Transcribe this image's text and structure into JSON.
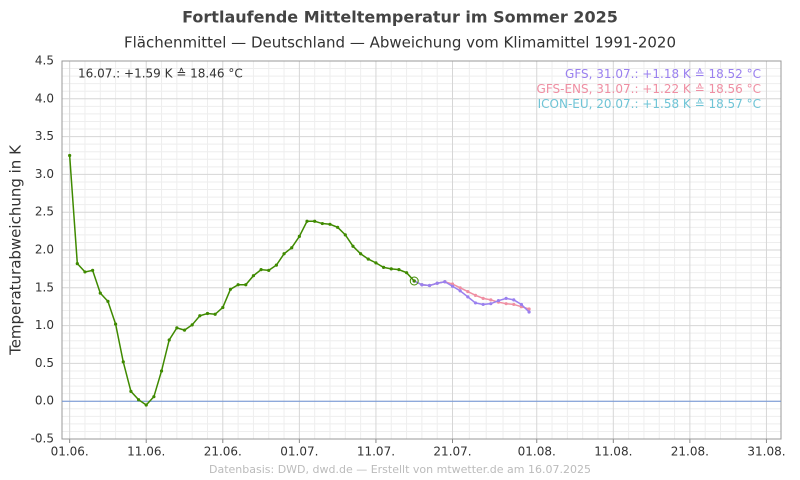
{
  "chart_data": {
    "type": "line",
    "title": "Fortlaufende Mitteltemperatur im Sommer 2025",
    "subtitle": "Flächenmittel — Deutschland — Abweichung vom Klimamittel 1991-2020",
    "y_label": "Temperaturabweichung in K",
    "footer": "Datenbasis: DWD, dwd.de — Erstellt von mtwetter.de am 16.07.2025",
    "annotation": "16.07.: +1.59 K ≙ 18.46 °C",
    "annotation_color": "#3f8a00",
    "xlim": [
      -1,
      92.9
    ],
    "ylim": [
      -0.5,
      4.5
    ],
    "xticks": [
      {
        "value": 0,
        "label": "01.06."
      },
      {
        "value": 10,
        "label": "11.06."
      },
      {
        "value": 20,
        "label": "21.06."
      },
      {
        "value": 30,
        "label": "01.07."
      },
      {
        "value": 40,
        "label": "11.07."
      },
      {
        "value": 50,
        "label": "21.07."
      },
      {
        "value": 61,
        "label": "01.08."
      },
      {
        "value": 71,
        "label": "11.08."
      },
      {
        "value": 81,
        "label": "21.08."
      },
      {
        "value": 91,
        "label": "31.08."
      }
    ],
    "yticks": [
      -0.5,
      {
        "value": 0,
        "label": "0.0"
      },
      0.5,
      {
        "value": 1,
        "label": "1.0"
      },
      1.5,
      {
        "value": 2,
        "label": "2.0"
      },
      2.5,
      {
        "value": 3,
        "label": "3.0"
      },
      3.5,
      {
        "value": 4,
        "label": "4.0"
      },
      4.5
    ],
    "grid": true,
    "zero_line_color": "#6f93d6",
    "series": [
      {
        "color": "#3f8a00",
        "x": [
          0,
          1,
          2,
          3,
          4,
          5,
          6,
          7,
          8,
          9,
          10,
          11,
          12,
          13,
          14,
          15,
          16,
          17,
          18,
          19,
          20,
          21,
          22,
          23,
          24,
          25,
          26,
          27,
          28,
          29,
          30,
          31,
          32,
          33,
          34,
          35,
          36,
          37,
          38,
          39,
          40,
          41,
          42,
          43,
          44,
          45
        ],
        "values": [
          3.25,
          1.82,
          1.71,
          1.73,
          1.43,
          1.32,
          1.02,
          0.52,
          0.13,
          0.02,
          -0.05,
          0.06,
          0.4,
          0.81,
          0.97,
          0.94,
          1.01,
          1.13,
          1.16,
          1.15,
          1.24,
          1.48,
          1.54,
          1.54,
          1.66,
          1.74,
          1.73,
          1.8,
          1.95,
          2.03,
          2.18,
          2.38,
          2.38,
          2.35,
          2.34,
          2.3,
          2.2,
          2.05,
          1.95,
          1.88,
          1.83,
          1.77,
          1.75,
          1.74,
          1.7,
          1.59
        ]
      },
      {
        "name": "GFS",
        "note": ", 31.07.: +1.18 K ≙ 18.52 °C",
        "color": "#9a80ef",
        "x": [
          45,
          46,
          47,
          48,
          49,
          50,
          51,
          52,
          53,
          54,
          55,
          56,
          57,
          58,
          59,
          60
        ],
        "values": [
          1.59,
          1.54,
          1.53,
          1.56,
          1.58,
          1.52,
          1.46,
          1.38,
          1.3,
          1.28,
          1.29,
          1.33,
          1.36,
          1.34,
          1.28,
          1.18
        ]
      },
      {
        "name": "GFS-ENS",
        "note": ", 31.07.: +1.22 K ≙ 18.56 °C",
        "color": "#ef8fa3",
        "x": [
          45,
          46,
          47,
          48,
          49,
          50,
          51,
          52,
          53,
          54,
          55,
          56,
          57,
          58,
          59,
          60
        ],
        "values": [
          1.59,
          1.54,
          1.53,
          1.56,
          1.58,
          1.55,
          1.5,
          1.45,
          1.4,
          1.36,
          1.34,
          1.31,
          1.29,
          1.28,
          1.25,
          1.22
        ]
      },
      {
        "name": "ICON-EU",
        "note": ", 20.07.: +1.58 K ≙ 18.57 °C",
        "color": "#6fc4d6",
        "x": [
          45,
          46,
          47,
          48,
          49
        ],
        "values": [
          1.59,
          1.54,
          1.53,
          1.56,
          1.58
        ]
      }
    ]
  }
}
